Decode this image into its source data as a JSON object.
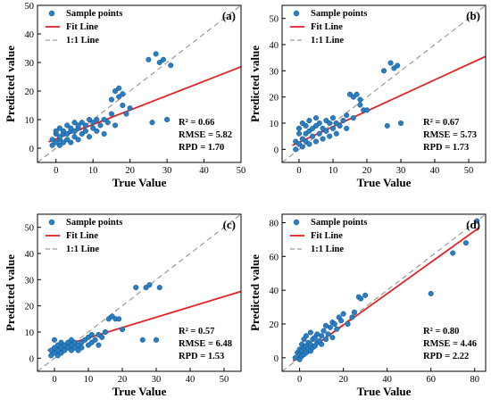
{
  "chart_data": [
    {
      "type": "scatter",
      "panel_label": "(a)",
      "xlabel": "True Value",
      "ylabel": "Predicted value",
      "xlim": [
        -5,
        50
      ],
      "ylim": [
        -5,
        50
      ],
      "xticks": [
        0,
        10,
        20,
        30,
        40,
        50
      ],
      "yticks": [
        0,
        10,
        20,
        30,
        40,
        50
      ],
      "legend": [
        "Sample points",
        "Fit Line",
        "1:1 Line"
      ],
      "legend_position": "top-left",
      "stats": {
        "r2": "R² = 0.66",
        "rmse": "RMSE = 5.82",
        "rpd": "RPD = 1.70"
      },
      "fit_line": [
        [
          -2,
          2.2
        ],
        [
          50,
          28.5
        ]
      ],
      "points": [
        [
          -1,
          1
        ],
        [
          -1,
          3
        ],
        [
          0,
          2
        ],
        [
          0,
          5
        ],
        [
          0,
          6
        ],
        [
          1,
          1
        ],
        [
          1,
          3
        ],
        [
          1,
          4
        ],
        [
          1,
          7
        ],
        [
          2,
          2
        ],
        [
          2,
          5
        ],
        [
          2,
          6
        ],
        [
          3,
          3
        ],
        [
          3,
          5
        ],
        [
          3,
          8
        ],
        [
          4,
          2
        ],
        [
          4,
          6
        ],
        [
          4,
          7
        ],
        [
          5,
          4
        ],
        [
          5,
          6
        ],
        [
          5,
          9
        ],
        [
          6,
          3
        ],
        [
          6,
          7
        ],
        [
          6,
          8
        ],
        [
          7,
          5
        ],
        [
          7,
          9
        ],
        [
          8,
          6
        ],
        [
          8,
          8
        ],
        [
          9,
          4
        ],
        [
          9,
          10
        ],
        [
          10,
          7
        ],
        [
          10,
          9
        ],
        [
          11,
          6
        ],
        [
          11,
          10
        ],
        [
          12,
          8
        ],
        [
          13,
          5
        ],
        [
          13,
          10
        ],
        [
          14,
          9
        ],
        [
          15,
          12
        ],
        [
          15,
          17
        ],
        [
          16,
          8
        ],
        [
          16,
          20
        ],
        [
          17,
          18
        ],
        [
          17,
          21
        ],
        [
          18,
          19
        ],
        [
          18,
          15
        ],
        [
          19,
          12
        ],
        [
          20,
          14
        ],
        [
          25,
          31
        ],
        [
          26,
          9
        ],
        [
          27,
          33
        ],
        [
          28,
          30
        ],
        [
          29,
          31
        ],
        [
          30,
          10
        ],
        [
          31,
          29
        ]
      ]
    },
    {
      "type": "scatter",
      "panel_label": "(b)",
      "xlabel": "True Value",
      "ylabel": "Predicted value",
      "xlim": [
        -5,
        55
      ],
      "ylim": [
        -5,
        55
      ],
      "xticks": [
        0,
        10,
        20,
        30,
        40,
        50
      ],
      "yticks": [
        0,
        10,
        20,
        30,
        40,
        50
      ],
      "legend": [
        "Sample points",
        "Fit Line",
        "1:1 Line"
      ],
      "legend_position": "top-left",
      "stats": {
        "r2": "R² = 0.67",
        "rmse": "RMSE = 5.73",
        "rpd": "RPD = 1.73"
      },
      "fit_line": [
        [
          -2,
          1.5
        ],
        [
          55,
          35.5
        ]
      ],
      "points": [
        [
          -1,
          0
        ],
        [
          -1,
          3
        ],
        [
          0,
          2
        ],
        [
          0,
          6
        ],
        [
          0,
          8
        ],
        [
          1,
          1
        ],
        [
          1,
          4
        ],
        [
          1,
          10
        ],
        [
          2,
          3
        ],
        [
          2,
          6
        ],
        [
          2,
          9
        ],
        [
          3,
          2
        ],
        [
          3,
          7
        ],
        [
          3,
          11
        ],
        [
          4,
          5
        ],
        [
          4,
          8
        ],
        [
          5,
          3
        ],
        [
          5,
          9
        ],
        [
          5,
          12
        ],
        [
          6,
          6
        ],
        [
          6,
          10
        ],
        [
          7,
          4
        ],
        [
          7,
          8
        ],
        [
          8,
          7
        ],
        [
          8,
          11
        ],
        [
          9,
          5
        ],
        [
          9,
          10
        ],
        [
          10,
          8
        ],
        [
          10,
          12
        ],
        [
          11,
          6
        ],
        [
          11,
          10
        ],
        [
          12,
          9
        ],
        [
          13,
          11
        ],
        [
          14,
          13
        ],
        [
          14,
          8
        ],
        [
          15,
          21
        ],
        [
          16,
          12
        ],
        [
          16,
          20
        ],
        [
          17,
          21
        ],
        [
          18,
          17
        ],
        [
          18,
          19
        ],
        [
          19,
          15
        ],
        [
          20,
          15
        ],
        [
          25,
          30
        ],
        [
          26,
          9
        ],
        [
          27,
          33
        ],
        [
          28,
          31
        ],
        [
          29,
          32
        ],
        [
          30,
          10
        ]
      ]
    },
    {
      "type": "scatter",
      "panel_label": "(c)",
      "xlabel": "True Value",
      "ylabel": "Predicted value",
      "xlim": [
        -5,
        55
      ],
      "ylim": [
        -5,
        55
      ],
      "xticks": [
        0,
        10,
        20,
        30,
        40,
        50
      ],
      "yticks": [
        0,
        10,
        20,
        30,
        40,
        50
      ],
      "legend": [
        "Sample points",
        "Fit Line",
        "1:1 Line"
      ],
      "legend_position": "top-left",
      "stats": {
        "r2": "R² = 0.57",
        "rmse": "RMSE = 6.48",
        "rpd": "RPD = 1.53"
      },
      "fit_line": [
        [
          -2,
          3
        ],
        [
          55,
          25.5
        ]
      ],
      "points": [
        [
          -1,
          1
        ],
        [
          -1,
          3
        ],
        [
          0,
          2
        ],
        [
          0,
          4
        ],
        [
          0,
          7
        ],
        [
          1,
          1
        ],
        [
          1,
          3
        ],
        [
          1,
          5
        ],
        [
          2,
          2
        ],
        [
          2,
          4
        ],
        [
          2,
          6
        ],
        [
          3,
          3
        ],
        [
          3,
          5
        ],
        [
          4,
          4
        ],
        [
          4,
          6
        ],
        [
          5,
          3
        ],
        [
          5,
          5
        ],
        [
          5,
          7
        ],
        [
          6,
          4
        ],
        [
          6,
          6
        ],
        [
          7,
          3
        ],
        [
          7,
          5
        ],
        [
          8,
          6
        ],
        [
          8,
          4
        ],
        [
          9,
          7
        ],
        [
          10,
          5
        ],
        [
          10,
          8
        ],
        [
          11,
          6
        ],
        [
          11,
          9
        ],
        [
          12,
          7
        ],
        [
          13,
          5
        ],
        [
          13,
          9
        ],
        [
          14,
          8
        ],
        [
          15,
          10
        ],
        [
          16,
          15
        ],
        [
          17,
          16
        ],
        [
          18,
          15
        ],
        [
          19,
          15
        ],
        [
          20,
          11
        ],
        [
          24,
          27
        ],
        [
          26,
          7
        ],
        [
          27,
          27
        ],
        [
          28,
          28
        ],
        [
          30,
          7
        ],
        [
          31,
          27
        ]
      ]
    },
    {
      "type": "scatter",
      "panel_label": "(d)",
      "xlabel": "True Value",
      "ylabel": "Predicted value",
      "xlim": [
        -8,
        85
      ],
      "ylim": [
        -8,
        85
      ],
      "xticks": [
        0,
        20,
        40,
        60,
        80
      ],
      "yticks": [
        0,
        20,
        40,
        60,
        80
      ],
      "legend": [
        "Sample points",
        "Fit Line",
        "1:1 Line"
      ],
      "legend_position": "top-left",
      "stats": {
        "r2": "R² = 0.80",
        "rmse": "RMSE = 4.46",
        "rpd": "RPD = 2.22"
      },
      "fit_line": [
        [
          -3,
          -2
        ],
        [
          82,
          77
        ]
      ],
      "points": [
        [
          -2,
          0
        ],
        [
          -1,
          3
        ],
        [
          0,
          -1
        ],
        [
          0,
          2
        ],
        [
          0,
          5
        ],
        [
          1,
          1
        ],
        [
          1,
          4
        ],
        [
          1,
          8
        ],
        [
          2,
          2
        ],
        [
          2,
          6
        ],
        [
          2,
          11
        ],
        [
          3,
          3
        ],
        [
          3,
          7
        ],
        [
          3,
          13
        ],
        [
          4,
          5
        ],
        [
          4,
          9
        ],
        [
          5,
          4
        ],
        [
          5,
          8
        ],
        [
          5,
          15
        ],
        [
          6,
          6
        ],
        [
          6,
          11
        ],
        [
          7,
          7
        ],
        [
          7,
          12
        ],
        [
          8,
          9
        ],
        [
          8,
          14
        ],
        [
          9,
          10
        ],
        [
          10,
          8
        ],
        [
          10,
          13
        ],
        [
          11,
          16
        ],
        [
          12,
          11
        ],
        [
          12,
          19
        ],
        [
          13,
          14
        ],
        [
          14,
          18
        ],
        [
          15,
          12
        ],
        [
          15,
          21
        ],
        [
          16,
          20
        ],
        [
          17,
          17
        ],
        [
          18,
          24
        ],
        [
          19,
          22
        ],
        [
          20,
          26
        ],
        [
          22,
          20
        ],
        [
          24,
          24
        ],
        [
          25,
          27
        ],
        [
          27,
          36
        ],
        [
          28,
          35
        ],
        [
          30,
          37
        ],
        [
          60,
          38
        ],
        [
          70,
          62
        ],
        [
          76,
          68
        ],
        [
          81,
          81
        ]
      ]
    }
  ]
}
